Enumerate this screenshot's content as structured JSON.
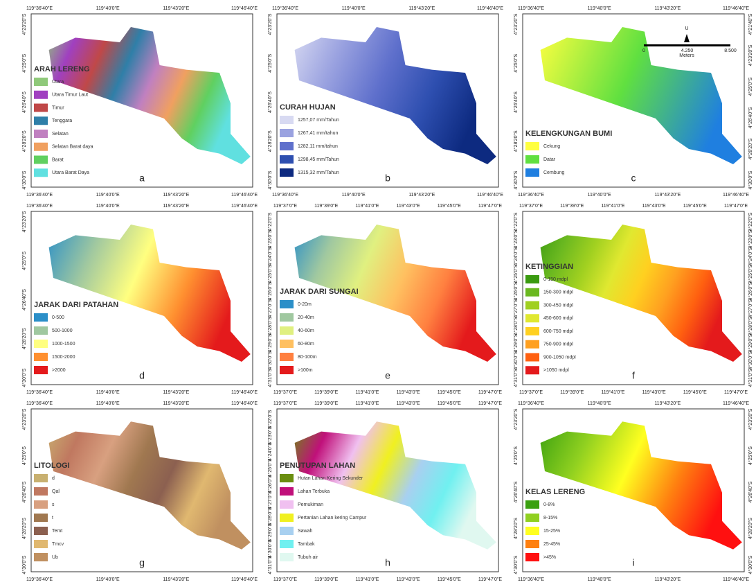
{
  "panels": [
    {
      "letter": "a",
      "legend_title": "ARAH LERENG",
      "items": [
        {
          "label": "Utara",
          "color": "#8fc97a"
        },
        {
          "label": "Utara Timur Laut",
          "color": "#a040c0"
        },
        {
          "label": "Timur",
          "color": "#c04848"
        },
        {
          "label": "Tenggara",
          "color": "#2f7fa8"
        },
        {
          "label": "Selatan",
          "color": "#c080c0"
        },
        {
          "label": "Selatan Barat daya",
          "color": "#f0a060"
        },
        {
          "label": "Barat",
          "color": "#60d060"
        },
        {
          "label": "Utara Barat Daya",
          "color": "#60e0e0"
        }
      ],
      "top": [
        "119°36'40\"E",
        "119°40'0\"E",
        "119°43'20\"E",
        "119°46'40\"E"
      ],
      "bottom": [
        "119°36'40\"E",
        "119°40'0\"E",
        "119°43'20\"E",
        "119°46'40\"E"
      ],
      "left": [
        "4°23'20\"S",
        "4°25'0\"S",
        "4°26'40\"S",
        "4°28'20\"S",
        "4°30'0\"S"
      ]
    },
    {
      "letter": "b",
      "legend_title": "CURAH HUJAN",
      "items": [
        {
          "label": "1257,07 mm/Tahun",
          "color": "#d8daf2"
        },
        {
          "label": "1267,41 mm/tahun",
          "color": "#9aa2e0"
        },
        {
          "label": "1282,11 mm/tahun",
          "color": "#5f70cc"
        },
        {
          "label": "1298,45 mm/Tahun",
          "color": "#2e4fb0"
        },
        {
          "label": "1315,32 mm/Tahun",
          "color": "#0d2a80"
        }
      ],
      "top": [
        "119°36'40\"E",
        "119°40'0\"E",
        "119°43'20\"E",
        "119°46'40\"E"
      ],
      "bottom": [
        "119°36'40\"E",
        "119°40'0\"E",
        "119°43'20\"E",
        "119°46'40\"E"
      ],
      "left": [
        "4°23'20\"S",
        "4°25'0\"S",
        "4°26'40\"S",
        "4°28'20\"S",
        "4°30'0\"S"
      ]
    },
    {
      "letter": "c",
      "legend_title": "KELENGKUNGAN BUMI",
      "items": [
        {
          "label": "Cekung",
          "color": "#ffff40"
        },
        {
          "label": "Datar",
          "color": "#60e040"
        },
        {
          "label": "Cembung",
          "color": "#1f7fe0"
        }
      ],
      "top": [
        "119°36'40\"E",
        "119°40'0\"E",
        "119°43'20\"E",
        "119°46'40\"E"
      ],
      "bottom": [
        "119°36'40\"E",
        "119°40'0\"E",
        "119°43'20\"E",
        "119°46'40\"E"
      ],
      "left": [
        "4°23'20\"S",
        "4°25'0\"S",
        "4°26'40\"S",
        "4°28'20\"S",
        "4°30'0\"S"
      ],
      "right": [
        "4°21'40\"S",
        "4°23'20\"S",
        "4°25'0\"S",
        "4°26'40\"S",
        "4°28'20\"S",
        "4°30'0\"S"
      ],
      "scale_bar": {
        "north": "U",
        "labels": [
          "0",
          "4.250",
          "8.500"
        ],
        "unit": "Meters"
      }
    },
    {
      "letter": "d",
      "legend_title": "JARAK DARI PATAHAN",
      "items": [
        {
          "label": "0-500",
          "color": "#2b8fc8"
        },
        {
          "label": "500-1000",
          "color": "#a0c8a0"
        },
        {
          "label": "1000-1500",
          "color": "#ffff80"
        },
        {
          "label": "1500-2000",
          "color": "#ff9030"
        },
        {
          "label": ">2000",
          "color": "#e41a1c"
        }
      ],
      "top": [
        "119°36'40\"E",
        "119°40'0\"E",
        "119°43'20\"E",
        "119°46'40\"E"
      ],
      "bottom": [
        "119°36'40\"E",
        "119°40'0\"E",
        "119°43'20\"E",
        "119°46'40\"E"
      ],
      "left": [
        "4°23'20\"S",
        "4°25'0\"S",
        "4°26'40\"S",
        "4°28'20\"S",
        "4°30'0\"S"
      ]
    },
    {
      "letter": "e",
      "legend_title": "JARAK DARI SUNGAI",
      "items": [
        {
          "label": "0-20m",
          "color": "#2b8fc8"
        },
        {
          "label": "20-40m",
          "color": "#a0c8a0"
        },
        {
          "label": "40-60m",
          "color": "#e0f080"
        },
        {
          "label": "60-80m",
          "color": "#ffc060"
        },
        {
          "label": "80-100m",
          "color": "#ff8040"
        },
        {
          "label": ">100m",
          "color": "#e41a1c"
        }
      ],
      "top": [
        "119°37'0\"E",
        "119°39'0\"E",
        "119°41'0\"E",
        "119°43'0\"E",
        "119°45'0\"E",
        "119°47'0\"E"
      ],
      "bottom": [
        "119°37'0\"E",
        "119°39'0\"E",
        "119°41'0\"E",
        "119°43'0\"E",
        "119°45'0\"E",
        "119°47'0\"E"
      ],
      "left": [
        "4°22'0\"S",
        "4°23'0\"S",
        "4°24'0\"S",
        "4°25'0\"S",
        "4°26'0\"S",
        "4°27'0\"S",
        "4°28'0\"S",
        "4°29'0\"S",
        "4°30'0\"S",
        "4°31'0\"S"
      ]
    },
    {
      "letter": "f",
      "legend_title": "KETINGGIAN",
      "items": [
        {
          "label": "0-150 mdpl",
          "color": "#3a9a10"
        },
        {
          "label": "150-300 mdpl",
          "color": "#6ab820"
        },
        {
          "label": "300-450 mdpl",
          "color": "#a0d020"
        },
        {
          "label": "450-600 mdpl",
          "color": "#e0e830"
        },
        {
          "label": "600-750 mdpl",
          "color": "#ffd020"
        },
        {
          "label": "750-900 mdpl",
          "color": "#ffa020"
        },
        {
          "label": "900-1050 mdpl",
          "color": "#ff6010"
        },
        {
          "label": ">1050 mdpl",
          "color": "#e41a1c"
        }
      ],
      "top": [
        "119°37'0\"E",
        "119°39'0\"E",
        "119°41'0\"E",
        "119°43'0\"E",
        "119°45'0\"E",
        "119°47'0\"E"
      ],
      "bottom": [
        "119°37'0\"E",
        "119°39'0\"E",
        "119°41'0\"E",
        "119°43'0\"E",
        "119°45'0\"E",
        "119°47'0\"E"
      ],
      "left": [
        "4°22'0\"S",
        "4°23'0\"S",
        "4°24'0\"S",
        "4°25'0\"S",
        "4°26'0\"S",
        "4°27'0\"S",
        "4°28'0\"S",
        "4°29'0\"S",
        "4°30'0\"S",
        "4°31'0\"S"
      ],
      "right": [
        "4°22'0\"S",
        "4°23'0\"S",
        "4°24'0\"S",
        "4°25'0\"S",
        "4°26'0\"S",
        "4°27'0\"S",
        "4°28'0\"S",
        "4°29'0\"S",
        "4°30'0\"S",
        "4°31'0\"S"
      ]
    },
    {
      "letter": "g",
      "legend_title": "LITOLOGI",
      "items": [
        {
          "label": "d",
          "color": "#c8b070"
        },
        {
          "label": "Qal",
          "color": "#c07860"
        },
        {
          "label": "s",
          "color": "#d8a080"
        },
        {
          "label": "t",
          "color": "#a07850"
        },
        {
          "label": "Temt",
          "color": "#8c6050"
        },
        {
          "label": "Tmcv",
          "color": "#e0b870"
        },
        {
          "label": "Ub",
          "color": "#c09060"
        }
      ],
      "top": [
        "119°36'40\"E",
        "119°40'0\"E",
        "119°43'20\"E",
        "119°46'40\"E"
      ],
      "bottom": [
        "119°36'40\"E",
        "119°40'0\"E",
        "119°43'20\"E",
        "119°46'40\"E"
      ],
      "left": [
        "4°23'20\"S",
        "4°25'0\"S",
        "4°26'40\"S",
        "4°28'20\"S",
        "4°30'0\"S"
      ]
    },
    {
      "letter": "h",
      "legend_title": "PENUTUPAN LAHAN",
      "items": [
        {
          "label": "Hutan Lahan Kering Sekunder",
          "color": "#6a8e10"
        },
        {
          "label": "Lahan Terbuka",
          "color": "#c0107a"
        },
        {
          "label": "Pemukiman",
          "color": "#f0c0f0"
        },
        {
          "label": "Pertanian Lahan kering Campur",
          "color": "#f0f020"
        },
        {
          "label": "Sawah",
          "color": "#a8d0f0"
        },
        {
          "label": "Tambak",
          "color": "#70f0f0"
        },
        {
          "label": "Tubuh air",
          "color": "#e0f8f0"
        }
      ],
      "top": [
        "119°37'0\"E",
        "119°39'0\"E",
        "119°41'0\"E",
        "119°43'0\"E",
        "119°45'0\"E",
        "119°47'0\"E"
      ],
      "bottom": [
        "119°37'0\"E",
        "119°39'0\"E",
        "119°41'0\"E",
        "119°43'0\"E",
        "119°45'0\"E",
        "119°47'0\"E"
      ],
      "left": [
        "4°22'0\"S",
        "4°23'0\"S",
        "4°24'0\"S",
        "4°25'0\"S",
        "4°26'0\"S",
        "4°27'0\"S",
        "4°28'0\"S",
        "4°29'0\"S",
        "4°30'0\"S",
        "4°31'0\"S"
      ]
    },
    {
      "letter": "i",
      "legend_title": "KELAS LERENG",
      "items": [
        {
          "label": "0-8%",
          "color": "#3aa010"
        },
        {
          "label": "8-15%",
          "color": "#90d020"
        },
        {
          "label": "15-25%",
          "color": "#ffff20"
        },
        {
          "label": "25-45%",
          "color": "#ff8010"
        },
        {
          "label": ">45%",
          "color": "#ff1010"
        }
      ],
      "top": [
        "119°36'40\"E",
        "119°40'0\"E",
        "119°43'20\"E",
        "119°46'40\"E"
      ],
      "bottom": [
        "119°36'40\"E",
        "119°40'0\"E",
        "119°43'20\"E",
        "119°46'40\"E"
      ],
      "left": [
        "4°23'20\"S",
        "4°25'0\"S",
        "4°26'40\"S",
        "4°28'20\"S",
        "4°30'0\"S"
      ],
      "right": [
        "4°23'20\"S",
        "4°25'0\"S",
        "4°26'40\"S",
        "4°28'20\"S",
        "4°30'0\"S"
      ]
    }
  ]
}
